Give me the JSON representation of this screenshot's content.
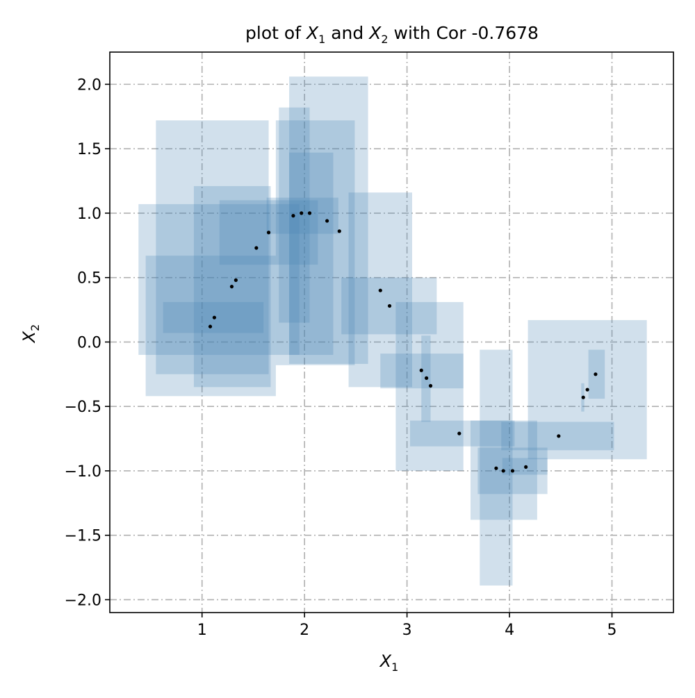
{
  "chart_data": {
    "type": "scatter",
    "title_prefix": "plot of ",
    "title_var1": "X",
    "title_var1_sub": "1",
    "title_mid": " and ",
    "title_var2": "X",
    "title_var2_sub": "2",
    "title_suffix": " with Cor -0.7678",
    "xlabel": "X",
    "xlabel_sub": "1",
    "ylabel": "X",
    "ylabel_sub": "2",
    "xlim": [
      0.1,
      5.6
    ],
    "ylim": [
      -2.1,
      2.25
    ],
    "x_ticks": [
      1,
      2,
      3,
      4,
      5
    ],
    "x_tick_labels": [
      "1",
      "2",
      "3",
      "4",
      "5"
    ],
    "y_ticks": [
      -2.0,
      -1.5,
      -1.0,
      -0.5,
      0.0,
      0.5,
      1.0,
      1.5,
      2.0
    ],
    "y_tick_labels": [
      "−2.0",
      "−1.5",
      "−1.0",
      "−0.5",
      "0.0",
      "0.5",
      "1.0",
      "1.5",
      "2.0"
    ],
    "grid": true,
    "points": [
      {
        "x": 1.08,
        "y": 0.12
      },
      {
        "x": 1.12,
        "y": 0.19
      },
      {
        "x": 1.29,
        "y": 0.43
      },
      {
        "x": 1.33,
        "y": 0.48
      },
      {
        "x": 1.53,
        "y": 0.73
      },
      {
        "x": 1.65,
        "y": 0.85
      },
      {
        "x": 1.89,
        "y": 0.98
      },
      {
        "x": 1.97,
        "y": 1.0
      },
      {
        "x": 2.05,
        "y": 1.0
      },
      {
        "x": 2.22,
        "y": 0.94
      },
      {
        "x": 2.34,
        "y": 0.86
      },
      {
        "x": 2.74,
        "y": 0.4
      },
      {
        "x": 2.83,
        "y": 0.28
      },
      {
        "x": 3.14,
        "y": -0.22
      },
      {
        "x": 3.19,
        "y": -0.28
      },
      {
        "x": 3.23,
        "y": -0.34
      },
      {
        "x": 3.51,
        "y": -0.71
      },
      {
        "x": 3.87,
        "y": -0.98
      },
      {
        "x": 3.94,
        "y": -1.0
      },
      {
        "x": 4.03,
        "y": -1.0
      },
      {
        "x": 4.16,
        "y": -0.97
      },
      {
        "x": 4.48,
        "y": -0.73
      },
      {
        "x": 4.72,
        "y": -0.43
      },
      {
        "x": 4.76,
        "y": -0.37
      },
      {
        "x": 4.84,
        "y": -0.25
      }
    ],
    "boxes": [
      {
        "x0": 0.55,
        "x1": 1.65,
        "y0": -0.25,
        "y1": 1.72
      },
      {
        "x0": 0.45,
        "x1": 1.72,
        "y0": -0.42,
        "y1": 0.67
      },
      {
        "x0": 0.38,
        "x1": 1.95,
        "y0": -0.1,
        "y1": 1.07
      },
      {
        "x0": 0.92,
        "x1": 1.67,
        "y0": -0.35,
        "y1": 1.21
      },
      {
        "x0": 0.62,
        "x1": 1.6,
        "y0": 0.07,
        "y1": 0.31
      },
      {
        "x0": 1.17,
        "x1": 2.13,
        "y0": 0.6,
        "y1": 1.1
      },
      {
        "x0": 1.75,
        "x1": 2.05,
        "y0": 0.15,
        "y1": 1.82
      },
      {
        "x0": 1.72,
        "x1": 2.49,
        "y0": -0.18,
        "y1": 1.72
      },
      {
        "x0": 1.85,
        "x1": 2.62,
        "y0": -0.17,
        "y1": 2.06
      },
      {
        "x0": 1.85,
        "x1": 2.28,
        "y0": -0.1,
        "y1": 1.47
      },
      {
        "x0": 1.63,
        "x1": 2.33,
        "y0": 0.84,
        "y1": 1.12
      },
      {
        "x0": 2.43,
        "x1": 3.05,
        "y0": -0.35,
        "y1": 1.16
      },
      {
        "x0": 2.36,
        "x1": 3.29,
        "y0": 0.06,
        "y1": 0.5
      },
      {
        "x0": 2.89,
        "x1": 3.55,
        "y0": -1.0,
        "y1": 0.31
      },
      {
        "x0": 2.74,
        "x1": 3.55,
        "y0": -0.36,
        "y1": -0.09
      },
      {
        "x0": 3.14,
        "x1": 3.23,
        "y0": -0.62,
        "y1": 0.05
      },
      {
        "x0": 3.03,
        "x1": 4.05,
        "y0": -0.81,
        "y1": -0.61
      },
      {
        "x0": 3.62,
        "x1": 4.27,
        "y0": -1.38,
        "y1": -0.61
      },
      {
        "x0": 3.69,
        "x1": 4.37,
        "y0": -1.18,
        "y1": -0.82
      },
      {
        "x0": 3.71,
        "x1": 4.03,
        "y0": -1.89,
        "y1": -0.06
      },
      {
        "x0": 3.93,
        "x1": 4.37,
        "y0": -1.03,
        "y1": -0.9
      },
      {
        "x0": 3.92,
        "x1": 5.02,
        "y0": -0.84,
        "y1": -0.62
      },
      {
        "x0": 4.18,
        "x1": 5.34,
        "y0": -0.91,
        "y1": 0.17
      },
      {
        "x0": 4.7,
        "x1": 4.73,
        "y0": -0.54,
        "y1": -0.32
      },
      {
        "x0": 4.77,
        "x1": 4.93,
        "y0": -0.44,
        "y1": -0.06
      }
    ],
    "box_color": "#4682b4",
    "box_opacity": 0.25,
    "point_color": "#000000"
  }
}
